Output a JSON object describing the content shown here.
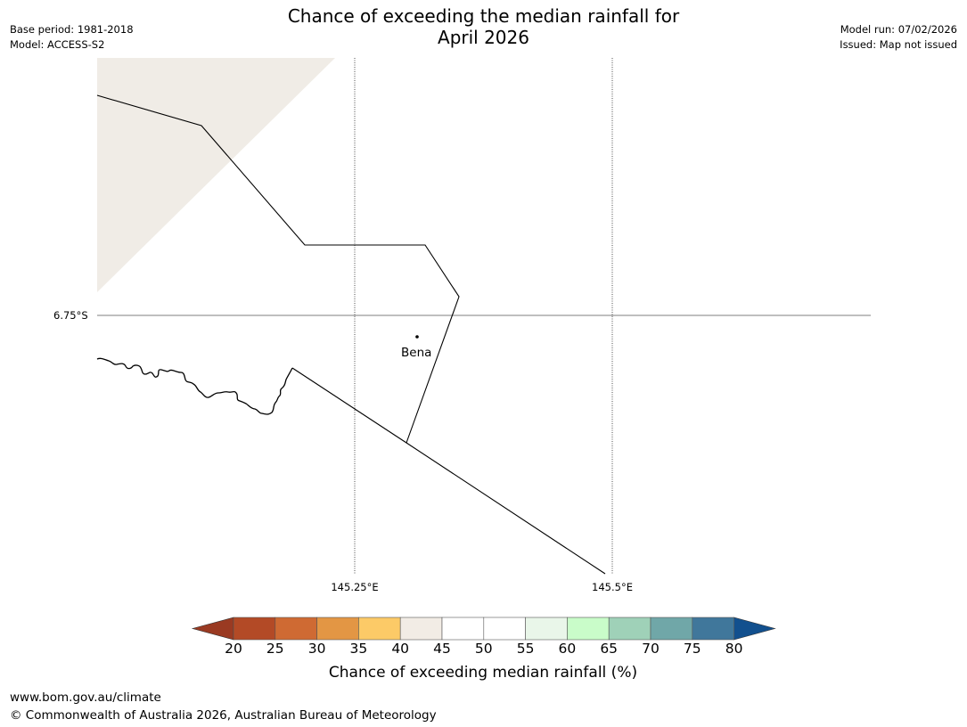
{
  "header": {
    "title_line1": "Chance of exceeding the median rainfall for",
    "title_line2": "April 2026",
    "base_period": "Base period: 1981-2018",
    "model": "Model: ACCESS-S2",
    "model_run": "Model run: 07/02/2026",
    "issued": "Issued: Map not issued"
  },
  "map": {
    "grid_labels": {
      "lat": "6.75°S",
      "lon1": "145.25°E",
      "lon2": "145.5°E"
    },
    "places": [
      {
        "name": "Bena"
      }
    ]
  },
  "colorbar": {
    "title": "Chance of exceeding median rainfall (%)",
    "tick_labels": [
      "20",
      "25",
      "30",
      "35",
      "40",
      "45",
      "50",
      "55",
      "60",
      "65",
      "70",
      "75",
      "80"
    ],
    "colors": {
      "below_20": "#9a3a22",
      "20_25": "#b34a26",
      "25_30": "#cf6a33",
      "30_35": "#e39644",
      "35_40": "#fcca67",
      "40_45": "#f2ece5",
      "45_50": "#ffffff",
      "50_55": "#ffffff",
      "55_60": "#e9f6e9",
      "60_65": "#c9fcc9",
      "65_70": "#9fd1b8",
      "70_75": "#70a7a8",
      "75_80": "#40779b",
      "above_80": "#12508e"
    }
  },
  "footer": {
    "url": "www.bom.gov.au/climate",
    "copyright": "© Commonwealth of Australia 2026, Australian Bureau of Meteorology"
  }
}
